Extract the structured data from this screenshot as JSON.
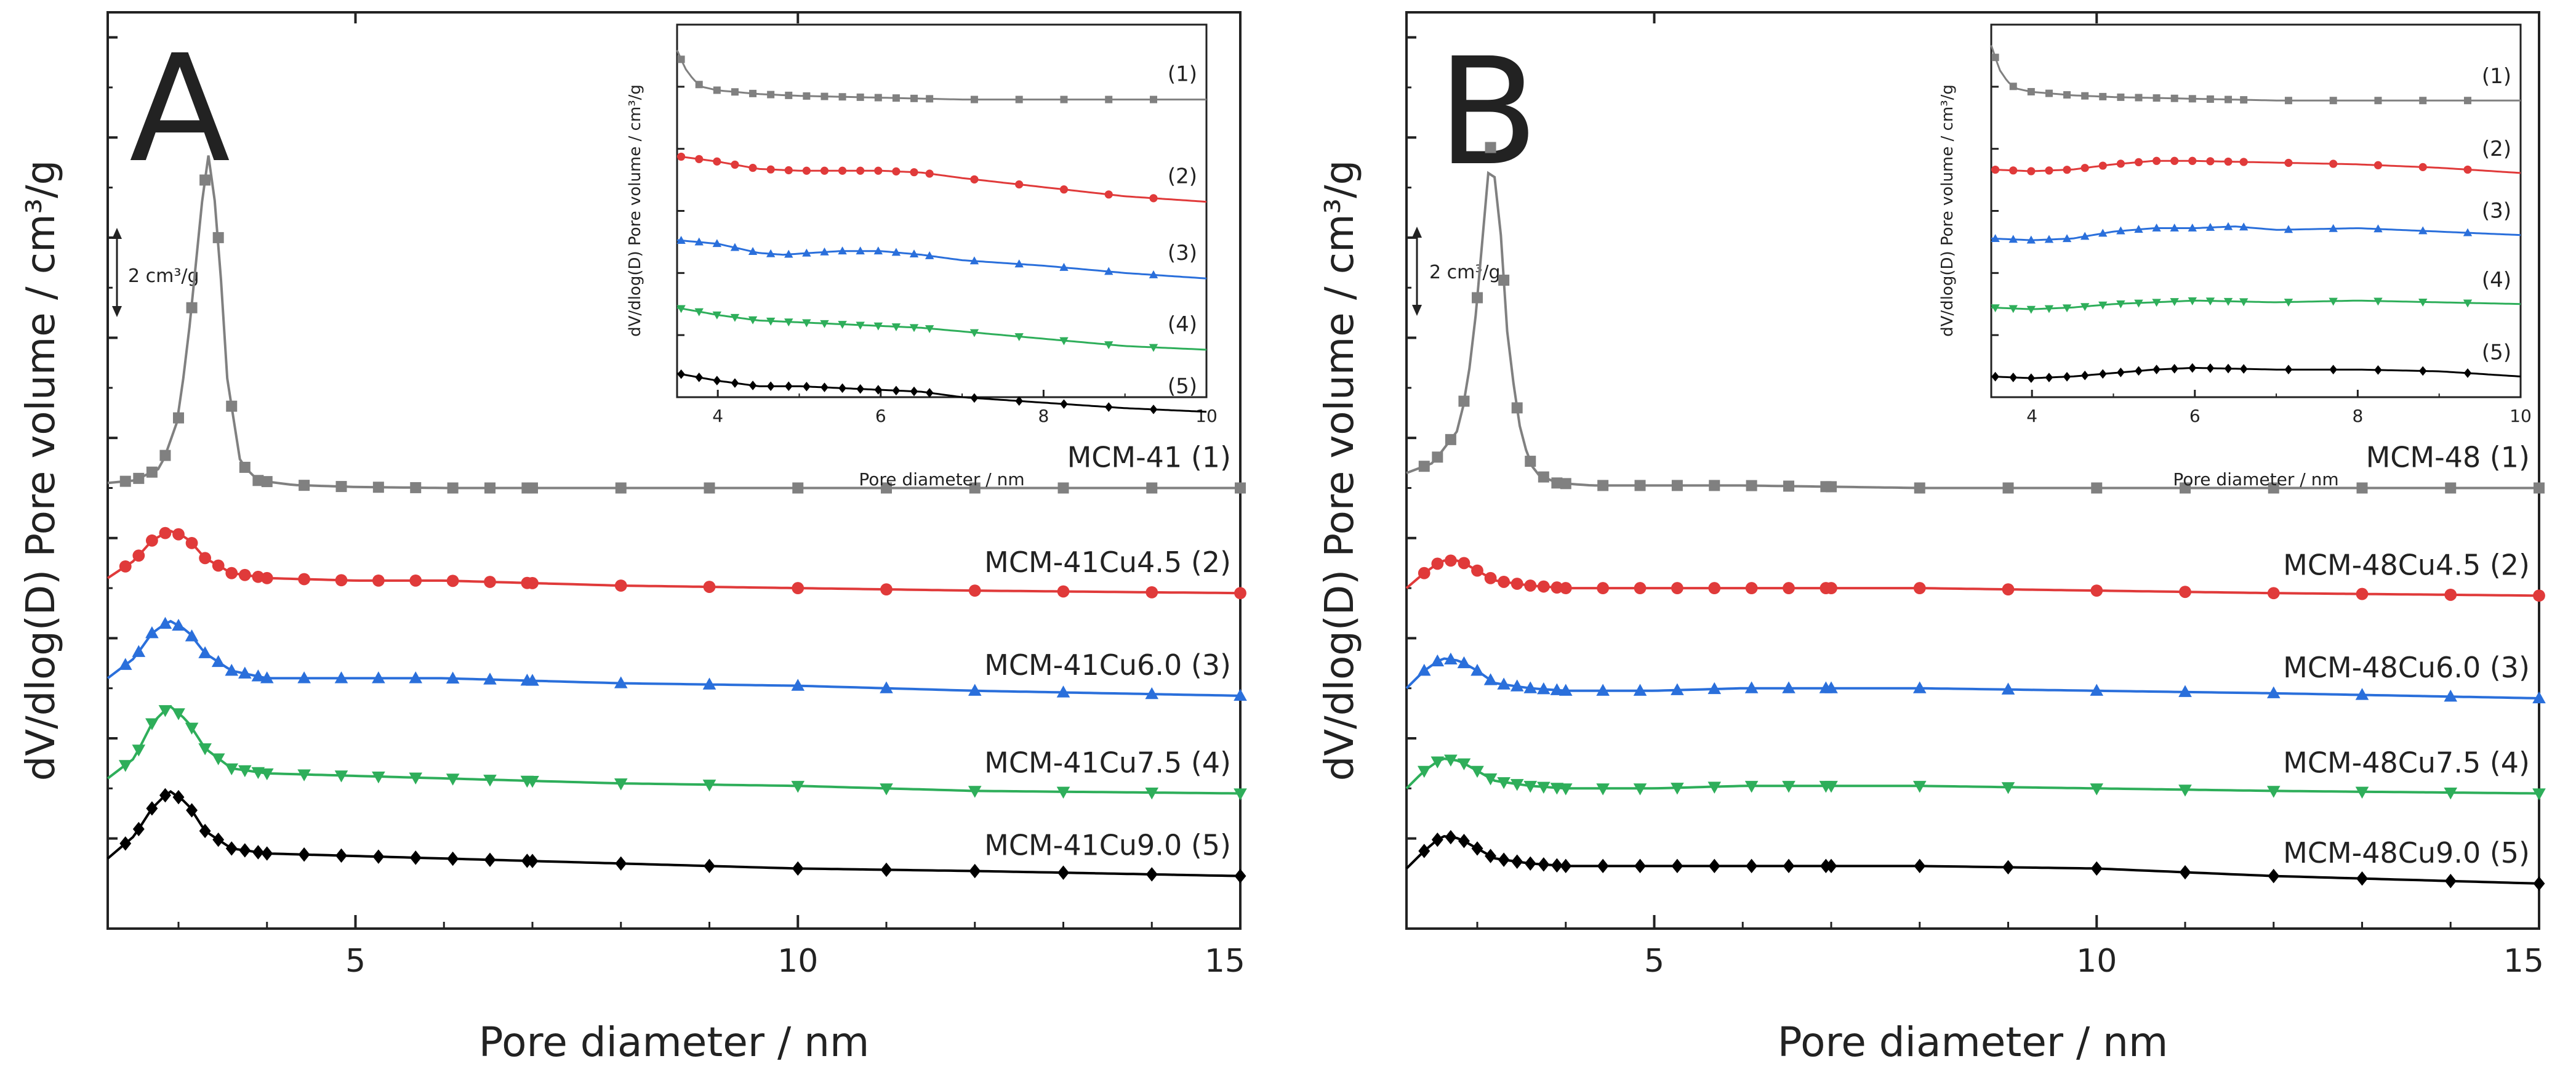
{
  "chart_data": [
    {
      "type": "line",
      "panel": "A",
      "xlabel": "Pore diameter / nm",
      "ylabel": "dV/dlog(D) Pore volume / cm³/g",
      "xlim": [
        2.2,
        15
      ],
      "x_ticks": [
        5,
        10,
        15
      ],
      "y_ticks_labeled": false,
      "scale_bar": "2 cm³/g",
      "scale_bar_value": 2,
      "grid": false,
      "series": [
        {
          "name": "MCM-41 (1)",
          "color": "#808080",
          "marker": "square",
          "offset": 7.0,
          "x": [
            2.2,
            2.5,
            2.8,
            3.0,
            3.15,
            3.25,
            3.35,
            3.45,
            3.55,
            3.7,
            3.9,
            4.3,
            5,
            6,
            8,
            10,
            12,
            15
          ],
          "values": [
            0.1,
            0.15,
            0.4,
            1.4,
            3.6,
            5.5,
            6.8,
            5.0,
            2.2,
            0.5,
            0.15,
            0.06,
            0.02,
            0.0,
            0.0,
            0.0,
            0.0,
            0.0
          ]
        },
        {
          "name": "MCM-41Cu4.5 (2)",
          "color": "#e03a3a",
          "marker": "circle",
          "offset": 5.0,
          "x": [
            2.2,
            2.5,
            2.7,
            2.9,
            3.1,
            3.3,
            3.6,
            4.0,
            5,
            6,
            7,
            8,
            10,
            12,
            15
          ],
          "values": [
            0.2,
            0.55,
            0.95,
            1.15,
            1.0,
            0.6,
            0.3,
            0.2,
            0.15,
            0.15,
            0.1,
            0.05,
            0.0,
            -0.05,
            -0.1
          ]
        },
        {
          "name": "MCM-41Cu6.0 (3)",
          "color": "#2a6fdb",
          "marker": "triangle-up",
          "offset": 3.0,
          "x": [
            2.2,
            2.5,
            2.7,
            2.9,
            3.1,
            3.3,
            3.6,
            4.0,
            5,
            6,
            7,
            8,
            10,
            12,
            15
          ],
          "values": [
            0.2,
            0.6,
            1.1,
            1.35,
            1.15,
            0.7,
            0.35,
            0.2,
            0.2,
            0.2,
            0.15,
            0.1,
            0.05,
            -0.05,
            -0.15
          ]
        },
        {
          "name": "MCM-41Cu7.5 (4)",
          "color": "#2eae5a",
          "marker": "triangle-down",
          "offset": 1.0,
          "x": [
            2.2,
            2.5,
            2.7,
            2.9,
            3.1,
            3.3,
            3.6,
            4.0,
            5,
            6,
            7,
            8,
            10,
            12,
            15
          ],
          "values": [
            0.2,
            0.6,
            1.3,
            1.65,
            1.35,
            0.8,
            0.4,
            0.3,
            0.25,
            0.2,
            0.15,
            0.1,
            0.05,
            -0.05,
            -0.1
          ]
        },
        {
          "name": "MCM-41Cu9.0 (5)",
          "color": "#000000",
          "marker": "diamond",
          "offset": -0.6,
          "x": [
            2.2,
            2.5,
            2.7,
            2.9,
            3.1,
            3.3,
            3.6,
            4.0,
            5,
            6,
            7,
            8,
            10,
            12,
            15
          ],
          "values": [
            0.2,
            0.65,
            1.2,
            1.55,
            1.3,
            0.75,
            0.4,
            0.3,
            0.25,
            0.2,
            0.15,
            0.1,
            0.0,
            -0.05,
            -0.15
          ]
        }
      ],
      "inset": {
        "xlabel": "Pore diameter / nm",
        "ylabel": "dV/dlog(D) Pore volume / cm³/g",
        "xlim": [
          3.5,
          10
        ],
        "x_ticks": [
          4,
          6,
          8,
          10
        ],
        "series": [
          {
            "label": "(1)",
            "color": "#808080",
            "marker": "square",
            "offset": 8.0,
            "x": [
              3.5,
              3.6,
              3.7,
              3.8,
              4.0,
              4.5,
              5,
              6,
              7,
              8,
              9,
              10
            ],
            "values": [
              1.3,
              0.8,
              0.5,
              0.3,
              0.2,
              0.1,
              0.05,
              0.0,
              -0.05,
              -0.05,
              -0.05,
              -0.05
            ]
          },
          {
            "label": "(2)",
            "color": "#e03a3a",
            "marker": "circle",
            "offset": 6.0,
            "x": [
              3.5,
              4,
              4.5,
              5,
              5.5,
              6,
              6.5,
              7,
              8,
              9,
              10
            ],
            "values": [
              0.4,
              0.25,
              0.05,
              0.0,
              0.0,
              0.0,
              -0.05,
              -0.2,
              -0.45,
              -0.7,
              -0.85
            ]
          },
          {
            "label": "(3)",
            "color": "#2a6fdb",
            "marker": "triangle-up",
            "offset": 4.0,
            "x": [
              3.5,
              4,
              4.5,
              4.8,
              5.5,
              6,
              6.5,
              7,
              8,
              9,
              10
            ],
            "values": [
              0.1,
              0.0,
              -0.25,
              -0.3,
              -0.2,
              -0.2,
              -0.3,
              -0.45,
              -0.6,
              -0.8,
              -0.95
            ]
          },
          {
            "label": "(4)",
            "color": "#2eae5a",
            "marker": "triangle-down",
            "offset": 2.0,
            "x": [
              3.5,
              4,
              4.5,
              5,
              5.5,
              6,
              6.5,
              7,
              8,
              9,
              10
            ],
            "values": [
              0.25,
              0.05,
              -0.1,
              -0.15,
              -0.2,
              -0.25,
              -0.3,
              -0.4,
              -0.6,
              -0.8,
              -0.9
            ]
          },
          {
            "label": "(5)",
            "color": "#000000",
            "marker": "diamond",
            "offset": 0.0,
            "x": [
              3.5,
              4,
              4.5,
              5,
              5.5,
              6,
              6.5,
              7,
              8,
              9,
              10
            ],
            "values": [
              0.45,
              0.25,
              0.1,
              0.1,
              0.05,
              0.0,
              -0.05,
              -0.2,
              -0.35,
              -0.5,
              -0.6
            ]
          }
        ]
      }
    },
    {
      "type": "line",
      "panel": "B",
      "xlabel": "Pore diameter / nm",
      "ylabel": "dV/dlog(D) Pore volume / cm³/g",
      "xlim": [
        2.2,
        15
      ],
      "x_ticks": [
        5,
        10,
        15
      ],
      "y_ticks_labeled": false,
      "scale_bar": "2 cm³/g",
      "scale_bar_value": 2,
      "grid": false,
      "series": [
        {
          "name": "MCM-48 (1)",
          "color": "#808080",
          "marker": "square",
          "offset": 7.0,
          "x": [
            2.2,
            2.5,
            2.8,
            2.95,
            3.05,
            3.15,
            3.25,
            3.35,
            3.5,
            3.65,
            3.9,
            4.3,
            5,
            6,
            8,
            10,
            12,
            15
          ],
          "values": [
            0.3,
            0.5,
            1.2,
            2.8,
            4.8,
            6.8,
            5.5,
            2.8,
            1.0,
            0.3,
            0.1,
            0.05,
            0.05,
            0.05,
            0.0,
            0.0,
            0.0,
            0.0
          ]
        },
        {
          "name": "MCM-48Cu4.5 (2)",
          "color": "#e03a3a",
          "marker": "circle",
          "offset": 5.0,
          "x": [
            2.2,
            2.4,
            2.6,
            2.8,
            3.0,
            3.2,
            3.6,
            4.0,
            5,
            6,
            8,
            10,
            12,
            15
          ],
          "values": [
            0.0,
            0.3,
            0.55,
            0.55,
            0.35,
            0.15,
            0.05,
            0.0,
            0.0,
            0.0,
            0.0,
            -0.05,
            -0.1,
            -0.15
          ]
        },
        {
          "name": "MCM-48Cu6.0 (3)",
          "color": "#2a6fdb",
          "marker": "triangle-up",
          "offset": 3.0,
          "x": [
            2.2,
            2.4,
            2.6,
            2.8,
            3.0,
            3.2,
            3.6,
            4.0,
            5,
            6,
            8,
            10,
            12,
            15
          ],
          "values": [
            0.0,
            0.35,
            0.6,
            0.55,
            0.35,
            0.1,
            0.0,
            -0.05,
            -0.05,
            0.0,
            0.0,
            -0.05,
            -0.1,
            -0.2
          ]
        },
        {
          "name": "MCM-48Cu7.5 (4)",
          "color": "#2eae5a",
          "marker": "triangle-down",
          "offset": 1.0,
          "x": [
            2.2,
            2.4,
            2.6,
            2.8,
            3.0,
            3.2,
            3.6,
            4.0,
            5,
            6,
            8,
            10,
            12,
            15
          ],
          "values": [
            0.0,
            0.35,
            0.6,
            0.55,
            0.35,
            0.15,
            0.05,
            0.0,
            0.0,
            0.05,
            0.05,
            0.0,
            -0.05,
            -0.1
          ]
        },
        {
          "name": "MCM-48Cu9.0 (5)",
          "color": "#000000",
          "marker": "diamond",
          "offset": -0.6,
          "x": [
            2.2,
            2.4,
            2.6,
            2.8,
            3.0,
            3.2,
            3.6,
            4.0,
            5,
            6,
            8,
            10,
            12,
            15
          ],
          "values": [
            0.0,
            0.35,
            0.65,
            0.6,
            0.4,
            0.2,
            0.1,
            0.05,
            0.05,
            0.05,
            0.05,
            0.0,
            -0.15,
            -0.3
          ]
        }
      ],
      "inset": {
        "xlabel": "Pore diameter / nm",
        "ylabel": "dV/dlog(D) Pore volume / cm³/g",
        "xlim": [
          3.5,
          10
        ],
        "x_ticks": [
          4,
          6,
          8,
          10
        ],
        "series": [
          {
            "label": "(1)",
            "color": "#808080",
            "marker": "square",
            "offset": 8.0,
            "x": [
              3.5,
              3.6,
              3.7,
              3.8,
              4.0,
              4.5,
              5,
              6,
              7,
              8,
              9,
              10
            ],
            "values": [
              1.6,
              0.9,
              0.55,
              0.35,
              0.25,
              0.15,
              0.1,
              0.05,
              0.0,
              0.0,
              0.0,
              0.0
            ]
          },
          {
            "label": "(2)",
            "color": "#e03a3a",
            "marker": "circle",
            "offset": 6.0,
            "x": [
              3.5,
              4,
              4.5,
              5,
              5.5,
              6,
              7,
              8,
              9,
              10
            ],
            "values": [
              0.0,
              -0.05,
              0.0,
              0.15,
              0.25,
              0.25,
              0.2,
              0.15,
              0.05,
              -0.1
            ]
          },
          {
            "label": "(3)",
            "color": "#2a6fdb",
            "marker": "triangle-up",
            "offset": 4.0,
            "x": [
              3.5,
              4,
              4.5,
              5,
              5.5,
              6,
              6.5,
              7,
              8,
              9,
              10
            ],
            "values": [
              0.0,
              -0.05,
              0.0,
              0.2,
              0.3,
              0.3,
              0.35,
              0.25,
              0.3,
              0.2,
              0.1
            ]
          },
          {
            "label": "(4)",
            "color": "#2eae5a",
            "marker": "triangle-down",
            "offset": 2.0,
            "x": [
              3.5,
              4,
              4.5,
              5,
              5.5,
              6,
              7,
              8,
              9,
              10
            ],
            "values": [
              0.0,
              -0.05,
              0.0,
              0.1,
              0.15,
              0.2,
              0.15,
              0.2,
              0.15,
              0.1
            ]
          },
          {
            "label": "(5)",
            "color": "#000000",
            "marker": "diamond",
            "offset": 0.0,
            "x": [
              3.5,
              4,
              4.5,
              5,
              5.5,
              6,
              7,
              8,
              9,
              10
            ],
            "values": [
              0.0,
              -0.05,
              0.0,
              0.1,
              0.2,
              0.25,
              0.2,
              0.2,
              0.15,
              0.0
            ]
          }
        ]
      }
    }
  ]
}
